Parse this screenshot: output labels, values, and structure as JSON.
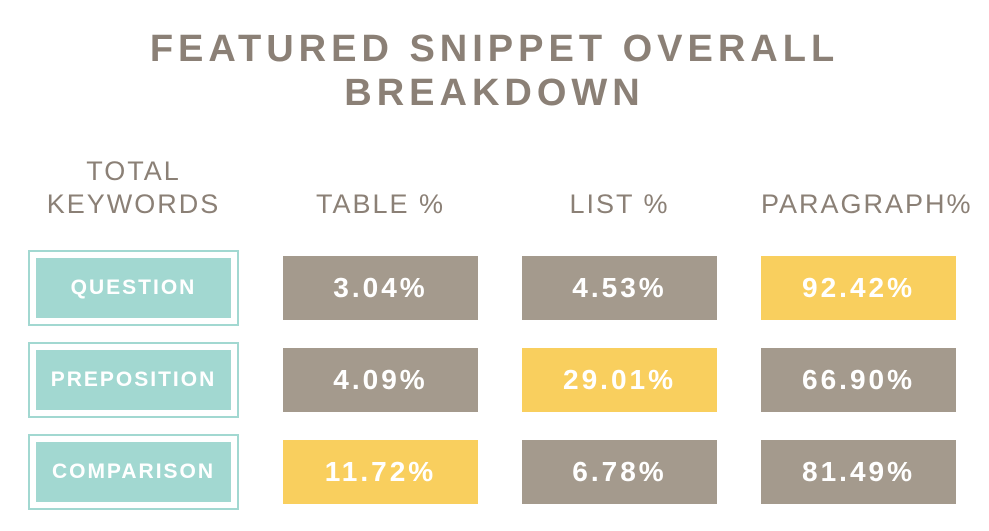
{
  "colors": {
    "background": "#ffffff",
    "title-text": "#8b8076",
    "header-text": "#8b8076",
    "cell-text": "#ffffff",
    "teal": "#a2d8d1",
    "gray": "#a49a8d",
    "yellow": "#f9cf5e"
  },
  "chart_data": {
    "type": "table",
    "title": "FEATURED SNIPPET OVERALL BREAKDOWN",
    "columns": [
      {
        "header": "TOTAL\nKEYWORDS"
      },
      {
        "header": "TABLE %"
      },
      {
        "header": "LIST %"
      },
      {
        "header": "PARAGRAPH%"
      }
    ],
    "rows": [
      {
        "label": "QUESTION",
        "cells": [
          {
            "text": "3.04%",
            "value": 3.04,
            "bg": "#a49a8d"
          },
          {
            "text": "4.53%",
            "value": 4.53,
            "bg": "#a49a8d"
          },
          {
            "text": "92.42%",
            "value": 92.42,
            "bg": "#f9cf5e"
          }
        ]
      },
      {
        "label": "PREPOSITION",
        "cells": [
          {
            "text": "4.09%",
            "value": 4.09,
            "bg": "#a49a8d"
          },
          {
            "text": "29.01%",
            "value": 29.01,
            "bg": "#f9cf5e"
          },
          {
            "text": "66.90%",
            "value": 66.9,
            "bg": "#a49a8d"
          }
        ]
      },
      {
        "label": "COMPARISON",
        "cells": [
          {
            "text": "11.72%",
            "value": 11.72,
            "bg": "#f9cf5e"
          },
          {
            "text": "6.78%",
            "value": 6.78,
            "bg": "#a49a8d"
          },
          {
            "text": "81.49%",
            "value": 81.49,
            "bg": "#a49a8d"
          }
        ]
      }
    ]
  }
}
